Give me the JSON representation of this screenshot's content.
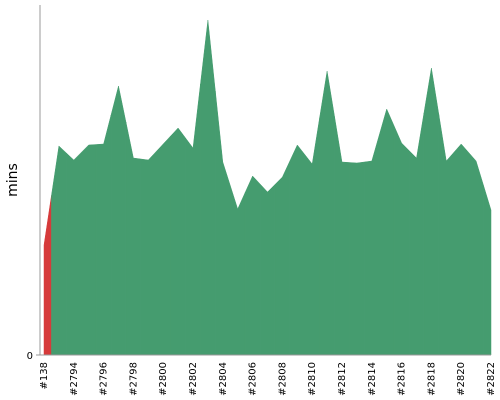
{
  "chart_data": {
    "type": "area",
    "y_label": "mins",
    "categories": [
      "#138",
      null,
      "#2794",
      null,
      "#2796",
      null,
      "#2798",
      null,
      "#2800",
      null,
      "#2802",
      null,
      "#2804",
      null,
      "#2806",
      null,
      "#2808",
      null,
      "#2810",
      null,
      "#2812",
      null,
      "#2814",
      null,
      "#2816",
      null,
      "#2818",
      null,
      "#2820",
      null,
      "#2822"
    ],
    "values": [
      110,
      209,
      195,
      210,
      211,
      269,
      197,
      195,
      211,
      227,
      207,
      335,
      193,
      146,
      179,
      163,
      178,
      210,
      191,
      284,
      193,
      192,
      194,
      246,
      212,
      197,
      287,
      194,
      211,
      194,
      145
    ],
    "colors": [
      "#d63a3a",
      "#459c6f",
      "#459c6f",
      "#459c6f",
      "#459c6f",
      "#459c6f",
      "#459c6f",
      "#459c6f",
      "#459c6f",
      "#459c6f",
      "#459c6f",
      "#459c6f",
      "#459c6f",
      "#459c6f",
      "#459c6f",
      "#459c6f",
      "#459c6f",
      "#459c6f",
      "#459c6f",
      "#459c6f",
      "#459c6f",
      "#459c6f",
      "#459c6f",
      "#459c6f",
      "#459c6f",
      "#459c6f",
      "#459c6f",
      "#459c6f",
      "#459c6f",
      "#459c6f",
      "#459c6f"
    ],
    "ylim": [
      0,
      350
    ],
    "yticks": [
      0
    ]
  }
}
